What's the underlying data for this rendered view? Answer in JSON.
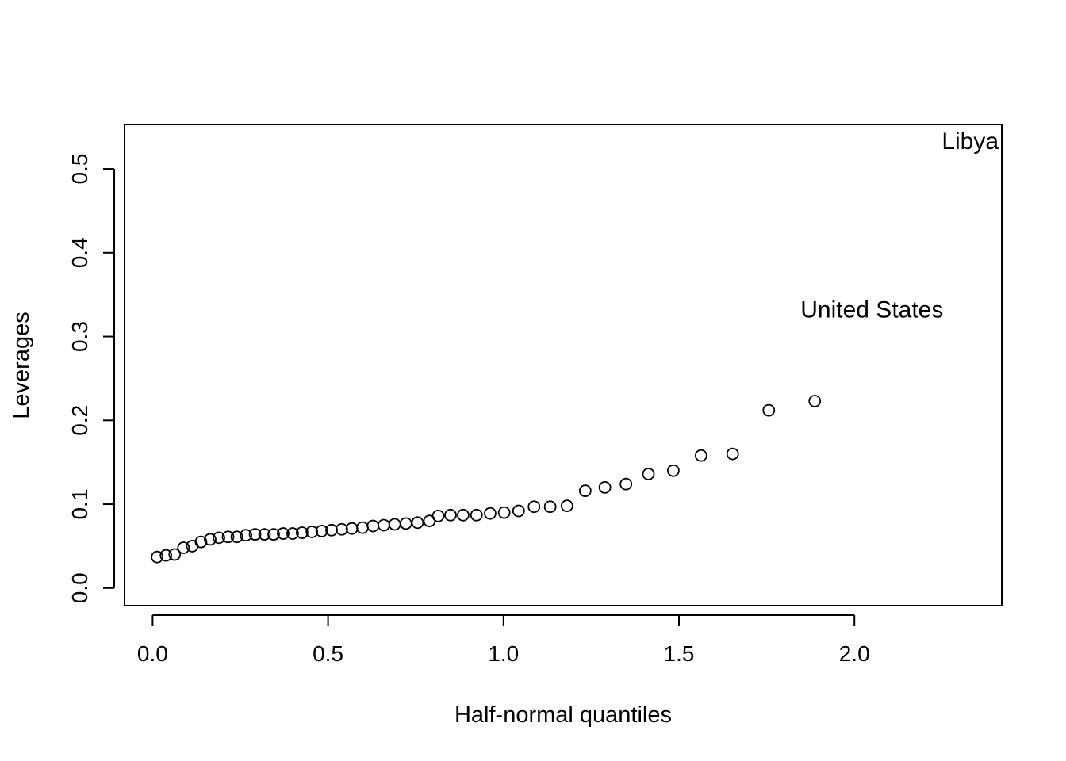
{
  "chart_data": {
    "type": "scatter",
    "xlabel": "Half-normal quantiles",
    "ylabel": "Leverages",
    "xlim": [
      -0.08,
      2.42
    ],
    "ylim": [
      -0.021,
      0.553
    ],
    "x_ticks": [
      0.0,
      0.5,
      1.0,
      1.5,
      2.0
    ],
    "x_tick_labels": [
      "0.0",
      "0.5",
      "1.0",
      "1.5",
      "2.0"
    ],
    "y_ticks": [
      0.0,
      0.1,
      0.2,
      0.3,
      0.4,
      0.5
    ],
    "y_tick_labels": [
      "0.0",
      "0.1",
      "0.2",
      "0.3",
      "0.4",
      "0.5"
    ],
    "grid": false,
    "marker": "open-circle",
    "points": [
      {
        "x": 0.013,
        "y": 0.037
      },
      {
        "x": 0.038,
        "y": 0.039
      },
      {
        "x": 0.063,
        "y": 0.04
      },
      {
        "x": 0.088,
        "y": 0.048
      },
      {
        "x": 0.113,
        "y": 0.05
      },
      {
        "x": 0.138,
        "y": 0.055
      },
      {
        "x": 0.164,
        "y": 0.058
      },
      {
        "x": 0.189,
        "y": 0.06
      },
      {
        "x": 0.215,
        "y": 0.061
      },
      {
        "x": 0.24,
        "y": 0.061
      },
      {
        "x": 0.266,
        "y": 0.063
      },
      {
        "x": 0.292,
        "y": 0.064
      },
      {
        "x": 0.319,
        "y": 0.064
      },
      {
        "x": 0.345,
        "y": 0.064
      },
      {
        "x": 0.372,
        "y": 0.065
      },
      {
        "x": 0.399,
        "y": 0.065
      },
      {
        "x": 0.426,
        "y": 0.066
      },
      {
        "x": 0.454,
        "y": 0.067
      },
      {
        "x": 0.482,
        "y": 0.068
      },
      {
        "x": 0.51,
        "y": 0.069
      },
      {
        "x": 0.539,
        "y": 0.07
      },
      {
        "x": 0.568,
        "y": 0.071
      },
      {
        "x": 0.598,
        "y": 0.072
      },
      {
        "x": 0.628,
        "y": 0.074
      },
      {
        "x": 0.659,
        "y": 0.075
      },
      {
        "x": 0.69,
        "y": 0.076
      },
      {
        "x": 0.722,
        "y": 0.077
      },
      {
        "x": 0.755,
        "y": 0.078
      },
      {
        "x": 0.789,
        "y": 0.08
      },
      {
        "x": 0.814,
        "y": 0.086
      },
      {
        "x": 0.849,
        "y": 0.087
      },
      {
        "x": 0.885,
        "y": 0.087
      },
      {
        "x": 0.923,
        "y": 0.087
      },
      {
        "x": 0.962,
        "y": 0.089
      },
      {
        "x": 1.002,
        "y": 0.09
      },
      {
        "x": 1.043,
        "y": 0.092
      },
      {
        "x": 1.087,
        "y": 0.097
      },
      {
        "x": 1.133,
        "y": 0.097
      },
      {
        "x": 1.181,
        "y": 0.098
      },
      {
        "x": 1.233,
        "y": 0.116
      },
      {
        "x": 1.289,
        "y": 0.12
      },
      {
        "x": 1.349,
        "y": 0.124
      },
      {
        "x": 1.413,
        "y": 0.136
      },
      {
        "x": 1.484,
        "y": 0.14
      },
      {
        "x": 1.563,
        "y": 0.158
      },
      {
        "x": 1.653,
        "y": 0.16
      },
      {
        "x": 1.756,
        "y": 0.212
      },
      {
        "x": 1.887,
        "y": 0.223
      }
    ],
    "annotations": [
      {
        "text": "United States",
        "x": 2.05,
        "y": 0.332
      },
      {
        "text": "Libya",
        "x": 2.33,
        "y": 0.533
      }
    ]
  }
}
